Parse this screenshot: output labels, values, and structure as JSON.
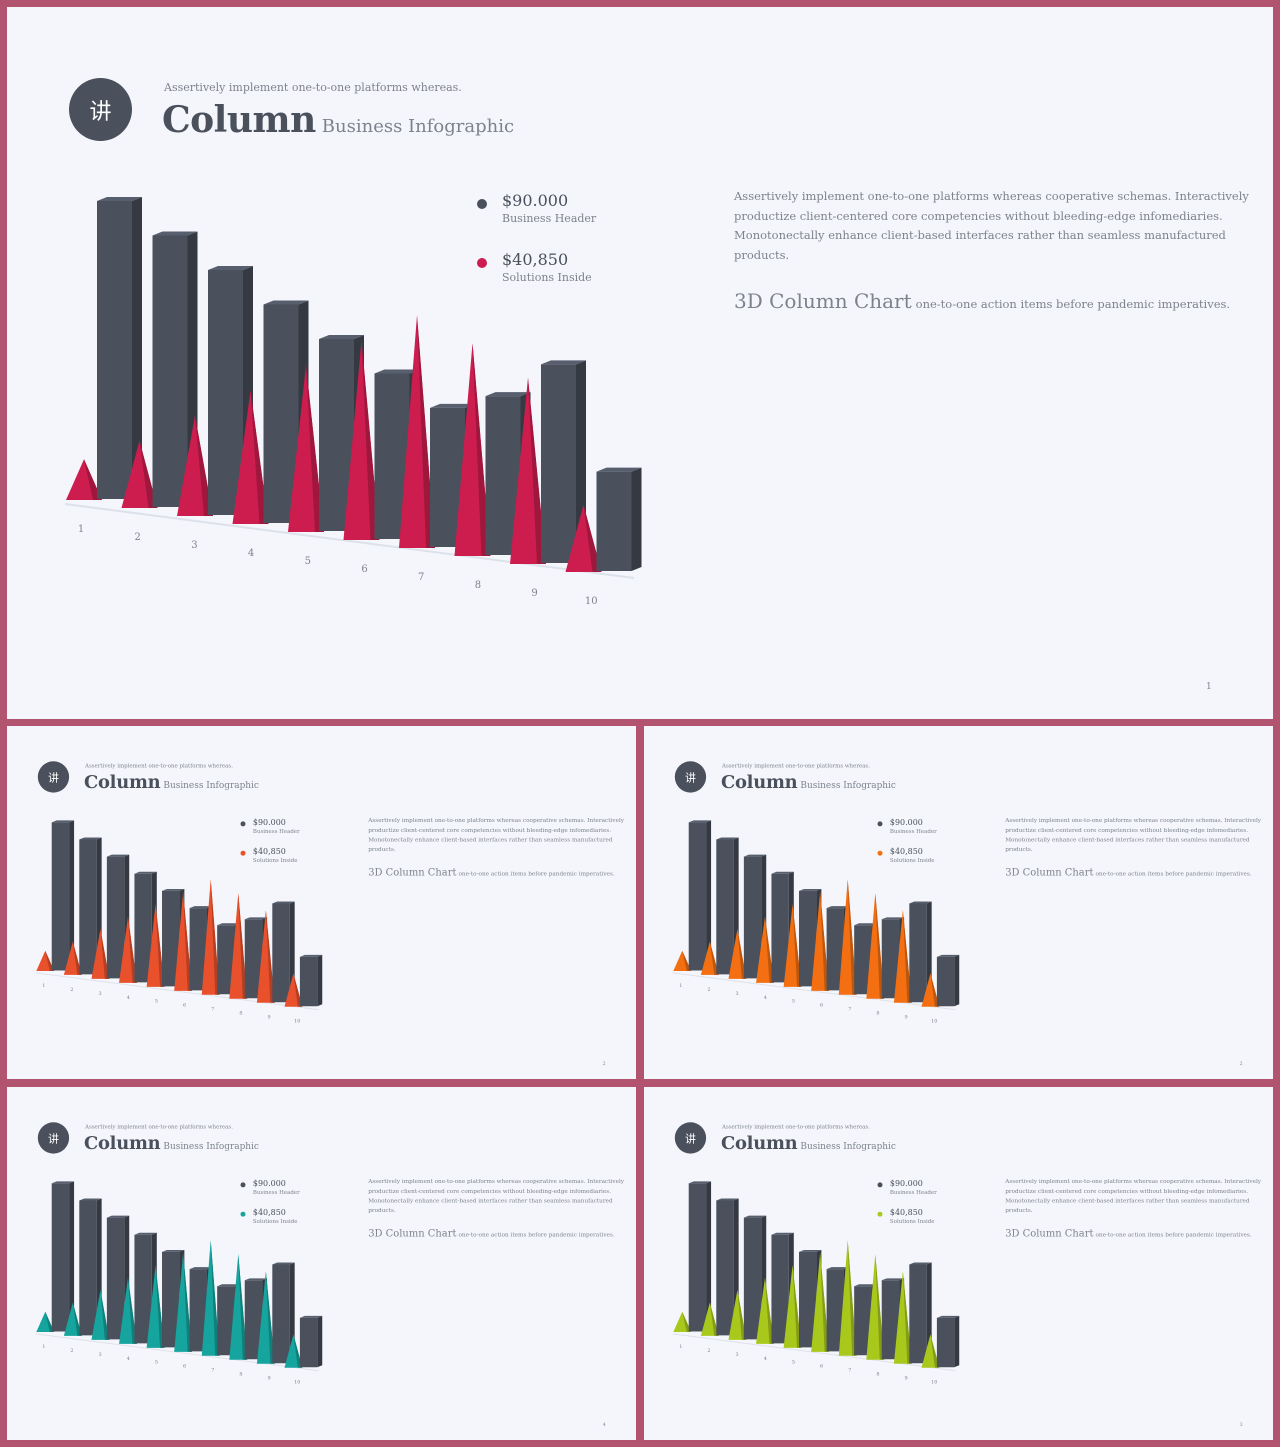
{
  "colors": {
    "dark": "#4a505c",
    "slides": [
      "#cc1d4e",
      "#e8512c",
      "#f36f12",
      "#15a49e",
      "#a9c81c"
    ]
  },
  "logo": {
    "glyph": "讲"
  },
  "header": {
    "subheading": "Assertively implement one-to-one platforms whereas.",
    "title": "Column",
    "title_sub": "Business Infographic"
  },
  "legend": [
    {
      "value": "$90.000",
      "label": "Business Header"
    },
    {
      "value": "$40,850",
      "label": "Solutions Inside"
    }
  ],
  "body": {
    "paragraph": "Assertively implement one-to-one platforms whereas cooperative schemas. Interactively productize client-centered core competencies without bleeding-edge infomediaries. Monotonectally enhance client-based interfaces rather than seamless manufactured products.",
    "chart_title": "3D Column Chart",
    "chart_caption": "one-to-one action items before pandemic imperatives."
  },
  "slides": [
    {
      "accent_color": "#cc1d4e",
      "page_number": "1"
    },
    {
      "accent_color": "#e8512c",
      "page_number": "2"
    },
    {
      "accent_color": "#f36f12",
      "page_number": "2"
    },
    {
      "accent_color": "#15a49e",
      "page_number": "4"
    },
    {
      "accent_color": "#a9c81c",
      "page_number": "3"
    }
  ],
  "chart_data": {
    "type": "bar",
    "categories": [
      "1",
      "2",
      "3",
      "4",
      "5",
      "6",
      "7",
      "8",
      "9",
      "10"
    ],
    "series": [
      {
        "name": "$90.000 Business Header",
        "color": "#4a505c",
        "values": [
          90,
          82,
          74,
          66,
          58,
          50,
          42,
          48,
          60,
          30
        ]
      },
      {
        "name": "$40,850 Solutions Inside",
        "values": [
          12,
          20,
          30,
          40,
          50,
          60,
          70,
          64,
          56,
          20
        ]
      }
    ],
    "style": "3D columns with cone markers",
    "grid": false,
    "legend_position": "top-right"
  }
}
